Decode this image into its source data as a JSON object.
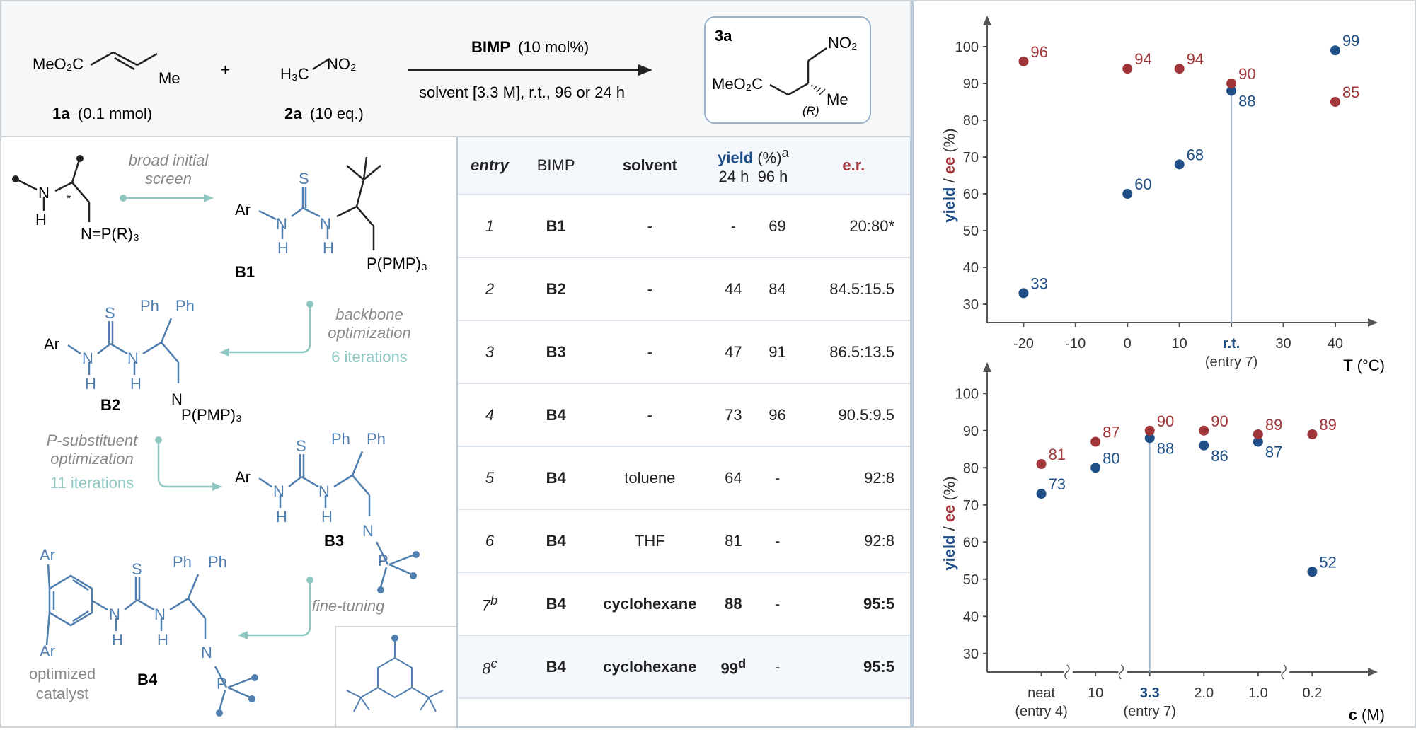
{
  "reaction": {
    "sm1_formula": "MeO₂C",
    "sm1_me": "Me",
    "sm1_label": "1a",
    "sm1_amount": "(0.1 mmol)",
    "plus": "+",
    "sm2_h3c": "H₃C",
    "sm2_no2": "NO₂",
    "sm2_label": "2a",
    "sm2_amount": "(10 eq.)",
    "reagent_bold": "BIMP",
    "reagent_rest": "(10 mol%)",
    "conditions": "solvent [3.3 M], r.t., 96 or 24 h",
    "product_label": "3a",
    "product_no2": "NO₂",
    "product_meo2c": "MeO₂C",
    "product_me": "Me",
    "product_r": "(R)"
  },
  "catalysts": {
    "generic_n": "N",
    "generic_h": "H",
    "generic_star": "*",
    "generic_pr3": "N=P(R)₃",
    "step1_line1": "broad initial",
    "step1_line2": "screen",
    "step2_line1": "backbone",
    "step2_line2": "optimization",
    "step2_count": "6 iterations",
    "step3_line1": "P-substituent",
    "step3_line2": "optimization",
    "step3_count": "11 iterations",
    "step4": "fine-tuning",
    "b1_label": "B1",
    "b2_label": "B2",
    "b3_label": "B3",
    "b4_label": "B4",
    "ar": "Ar",
    "s": "S",
    "n": "N",
    "h": "H",
    "ph": "Ph",
    "pmp3": "P(PMP)₃",
    "p": "P",
    "b4_caption1": "optimized",
    "b4_caption2": "catalyst"
  },
  "table": {
    "headers": {
      "entry": "entry",
      "bimp": "BIMP",
      "solvent": "solvent",
      "yield": "yield",
      "yield_unit": "(%)",
      "yield_sup": "a",
      "h24": "24 h",
      "h96": "96 h",
      "er": "e.r."
    },
    "rows": [
      {
        "entry": "1",
        "sup": "",
        "bimp": "B1",
        "solvent": "-",
        "y24": "-",
        "y24sup": "",
        "y96": "69",
        "er": "20:80",
        "er_mark": "*",
        "bold": false
      },
      {
        "entry": "2",
        "sup": "",
        "bimp": "B2",
        "solvent": "-",
        "y24": "44",
        "y24sup": "",
        "y96": "84",
        "er": "84.5:15.5",
        "er_mark": "",
        "bold": false
      },
      {
        "entry": "3",
        "sup": "",
        "bimp": "B3",
        "solvent": "-",
        "y24": "47",
        "y24sup": "",
        "y96": "91",
        "er": "86.5:13.5",
        "er_mark": "",
        "bold": false
      },
      {
        "entry": "4",
        "sup": "",
        "bimp": "B4",
        "solvent": "-",
        "y24": "73",
        "y24sup": "",
        "y96": "96",
        "er": "90.5:9.5",
        "er_mark": "",
        "bold": false
      },
      {
        "entry": "5",
        "sup": "",
        "bimp": "B4",
        "solvent": "toluene",
        "y24": "64",
        "y24sup": "",
        "y96": "-",
        "er": "92:8",
        "er_mark": "",
        "bold": false
      },
      {
        "entry": "6",
        "sup": "",
        "bimp": "B4",
        "solvent": "THF",
        "y24": "81",
        "y24sup": "",
        "y96": "-",
        "er": "92:8",
        "er_mark": "",
        "bold": false
      },
      {
        "entry": "7",
        "sup": "b",
        "bimp": "B4",
        "solvent": "cyclohexane",
        "y24": "88",
        "y24sup": "",
        "y96": "-",
        "er": "95:5",
        "er_mark": "",
        "bold": true
      },
      {
        "entry": "8",
        "sup": "c",
        "bimp": "B4",
        "solvent": "cyclohexane",
        "y24": "99",
        "y24sup": "d",
        "y96": "-",
        "er": "95:5",
        "er_mark": "",
        "bold": true
      }
    ]
  },
  "colors": {
    "yield": "#1f4f86",
    "ee": "#a0363a",
    "teal": "#8fc8c3",
    "catalyst_blue": "#4f7eaf"
  },
  "chart_data": [
    {
      "type": "scatter",
      "xlabel": "T",
      "xunit": "(°C)",
      "ylabel_yield": "yield",
      "ylabel_sep": " / ",
      "ylabel_ee": "ee",
      "ylabel_unit": " (%)",
      "ylim": [
        25,
        105
      ],
      "xlim": [
        -27,
        46
      ],
      "yticks": [
        30,
        40,
        50,
        60,
        70,
        80,
        90,
        100
      ],
      "xticks": [
        {
          "x": -20,
          "label": "-20"
        },
        {
          "x": -10,
          "label": "-10"
        },
        {
          "x": 0,
          "label": "0"
        },
        {
          "x": 10,
          "label": "10"
        },
        {
          "x": 20,
          "label": "r.t."
        },
        {
          "x": 30,
          "label": "30"
        },
        {
          "x": 40,
          "label": "40"
        }
      ],
      "vline": {
        "x": 20,
        "label": "(entry 7)"
      },
      "series": [
        {
          "key": "yield",
          "points": [
            {
              "x": -20,
              "y": 33
            },
            {
              "x": 0,
              "y": 60
            },
            {
              "x": 10,
              "y": 68
            },
            {
              "x": 20,
              "y": 88
            },
            {
              "x": 40,
              "y": 99
            }
          ]
        },
        {
          "key": "ee",
          "points": [
            {
              "x": -20,
              "y": 96
            },
            {
              "x": 0,
              "y": 94
            },
            {
              "x": 10,
              "y": 94
            },
            {
              "x": 20,
              "y": 90
            },
            {
              "x": 40,
              "y": 85
            }
          ]
        }
      ]
    },
    {
      "type": "scatter",
      "xlabel": "c",
      "xunit": "(M)",
      "ylabel_yield": "yield",
      "ylabel_sep": " / ",
      "ylabel_ee": "ee",
      "ylabel_unit": " (%)",
      "ylim": [
        25,
        105
      ],
      "xlim": [
        0,
        7
      ],
      "yticks": [
        30,
        40,
        50,
        60,
        70,
        80,
        90,
        100
      ],
      "xticks": [
        {
          "x": 1,
          "label": "neat",
          "sub": "(entry 4)"
        },
        {
          "x": 2,
          "label": "10"
        },
        {
          "x": 3,
          "label": "3.3",
          "sub": "(entry 7)"
        },
        {
          "x": 4,
          "label": "2.0"
        },
        {
          "x": 5,
          "label": "1.0"
        },
        {
          "x": 6,
          "label": "0.2"
        }
      ],
      "vline": {
        "x": 3
      },
      "breaks": [
        1.5,
        2.5,
        5.5
      ],
      "series": [
        {
          "key": "yield",
          "points": [
            {
              "x": 1,
              "y": 73
            },
            {
              "x": 2,
              "y": 80
            },
            {
              "x": 3,
              "y": 88
            },
            {
              "x": 4,
              "y": 86
            },
            {
              "x": 5,
              "y": 87
            },
            {
              "x": 6,
              "y": 52
            }
          ]
        },
        {
          "key": "ee",
          "points": [
            {
              "x": 1,
              "y": 81
            },
            {
              "x": 2,
              "y": 87
            },
            {
              "x": 3,
              "y": 90
            },
            {
              "x": 4,
              "y": 90
            },
            {
              "x": 5,
              "y": 89
            },
            {
              "x": 6,
              "y": 89
            }
          ]
        }
      ]
    }
  ]
}
